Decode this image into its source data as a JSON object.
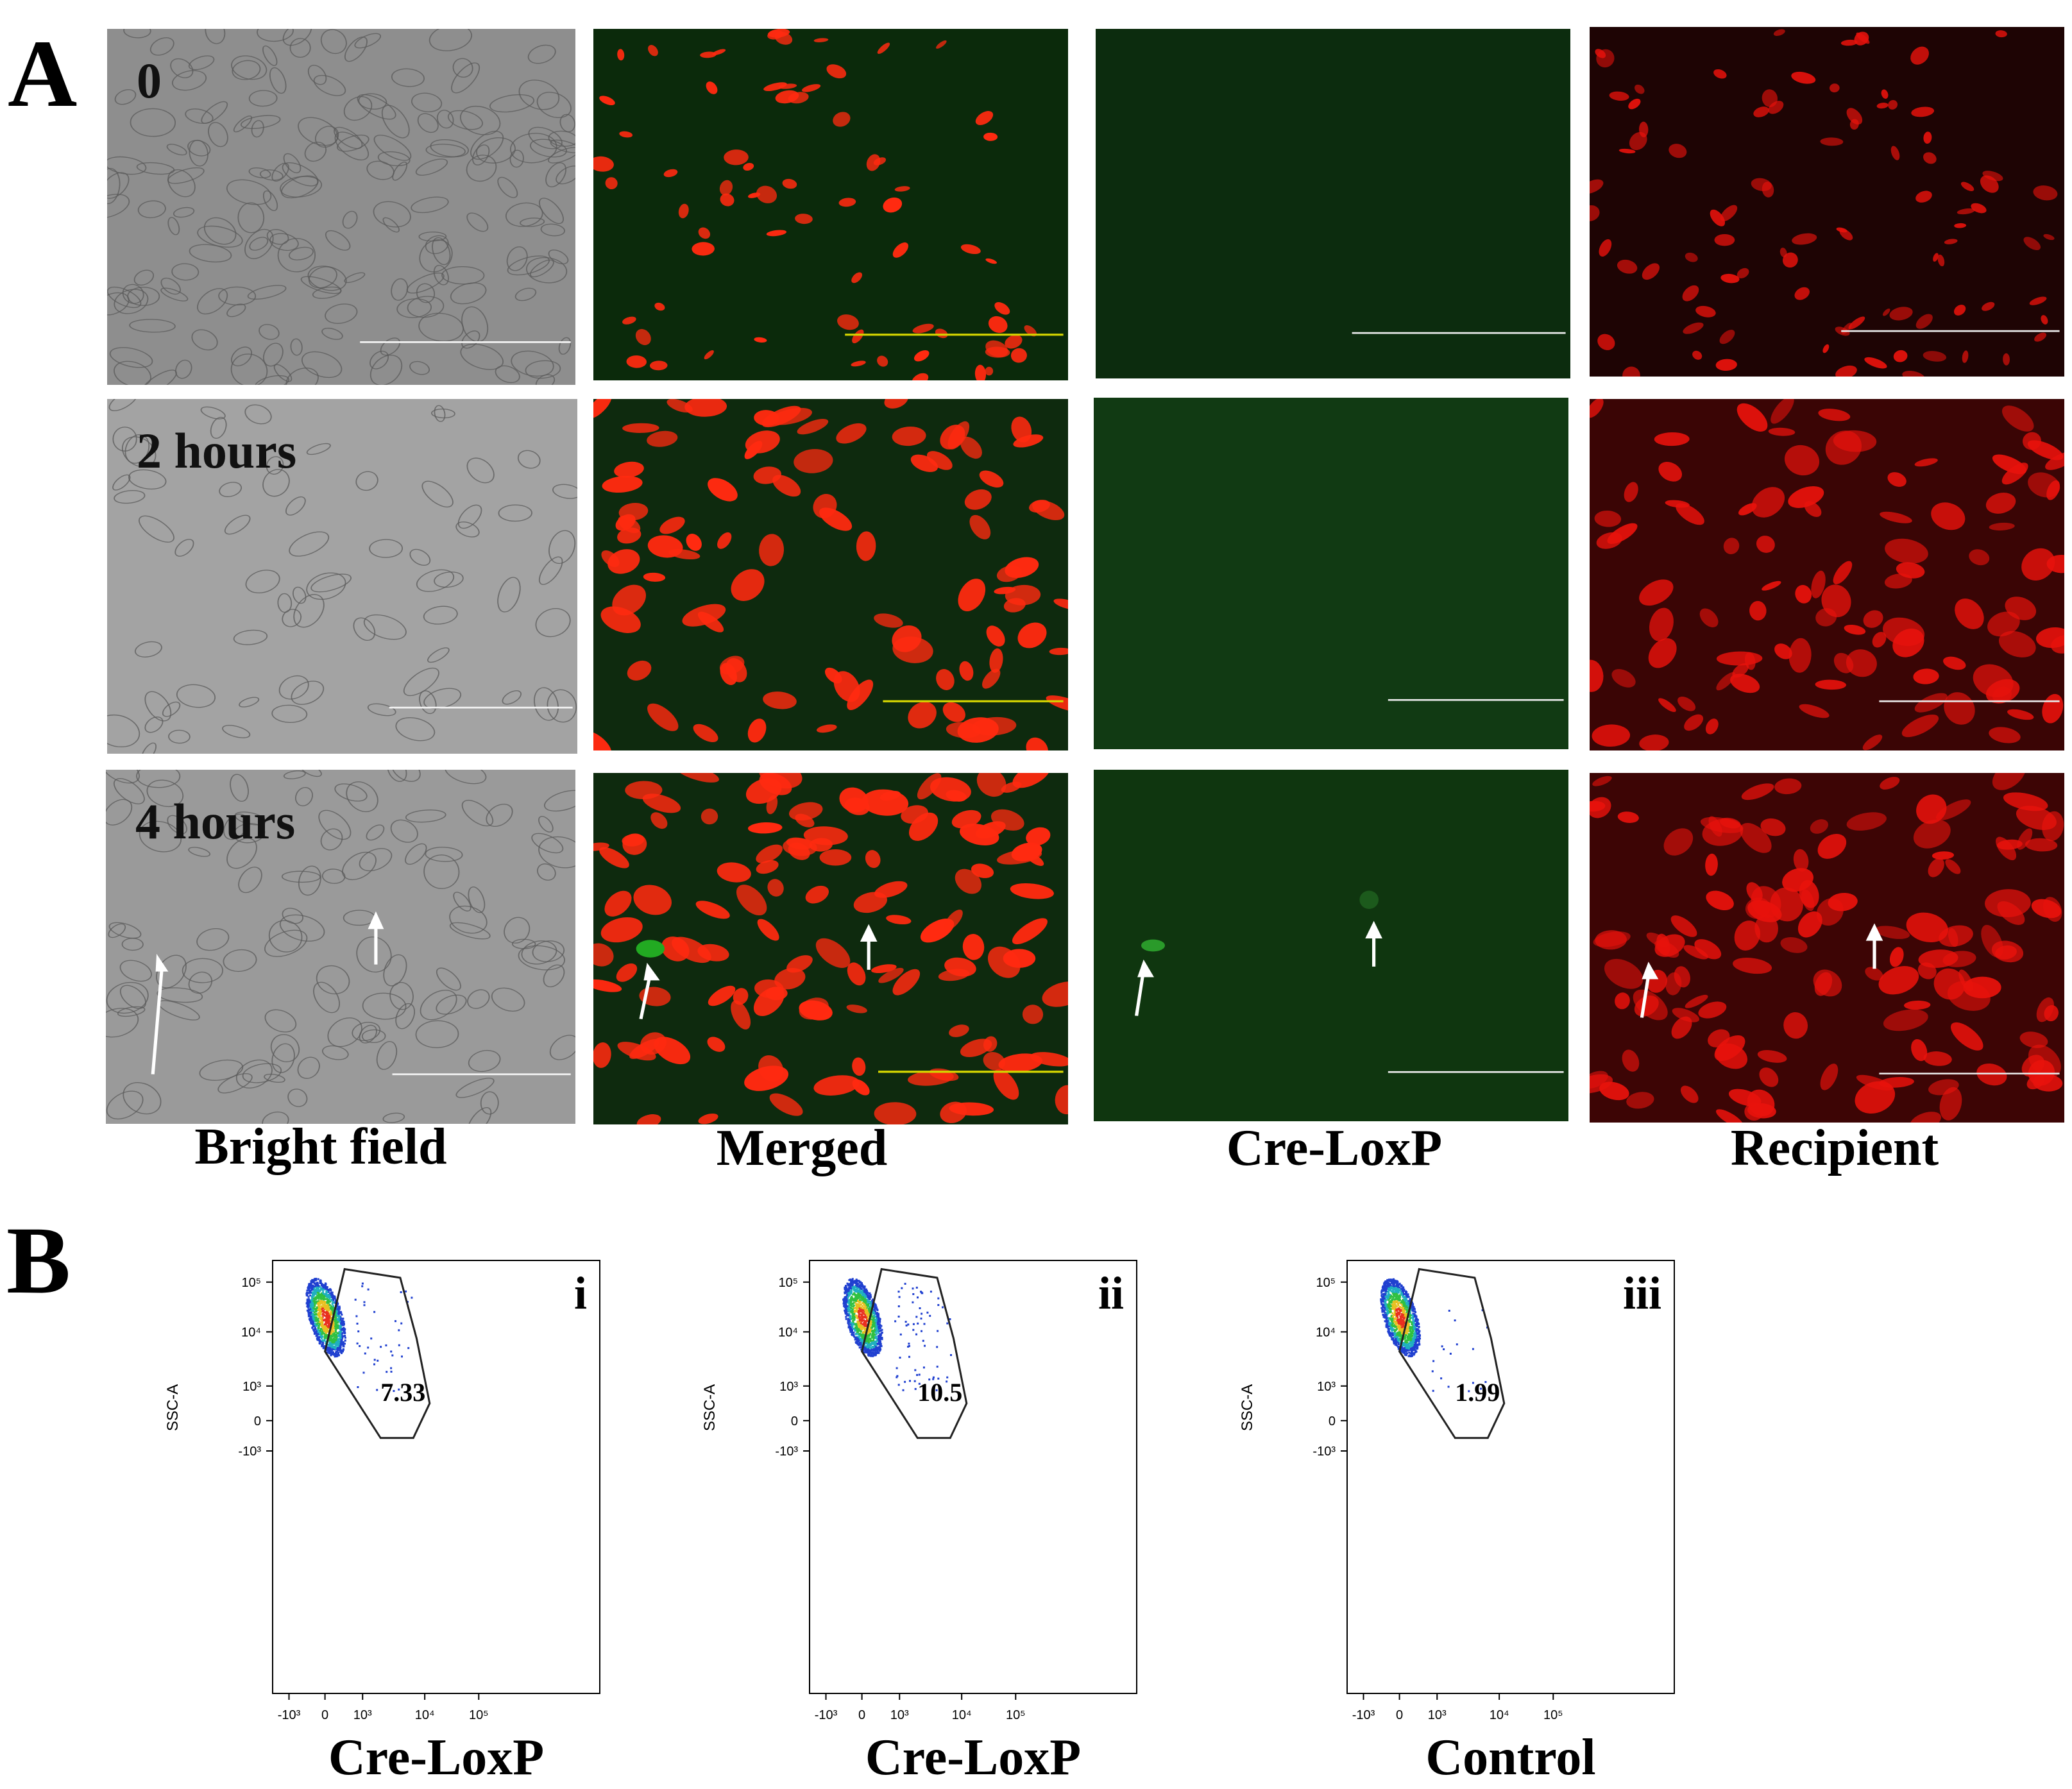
{
  "panel_a": {
    "letter": "A",
    "rows": [
      {
        "time_label": "0"
      },
      {
        "time_label": "2 hours"
      },
      {
        "time_label": "4 hours"
      }
    ],
    "columns": [
      {
        "label": "Bright field"
      },
      {
        "label": "Merged"
      },
      {
        "label": "Cre-LoxP"
      },
      {
        "label": "Recipient"
      }
    ]
  },
  "panel_b": {
    "letter": "B",
    "plots": [
      {
        "roman": "i",
        "gate_value": "7.33",
        "x_title": "Cre-LoxP"
      },
      {
        "roman": "ii",
        "gate_value": "10.5",
        "x_title": "Cre-LoxP"
      },
      {
        "roman": "iii",
        "gate_value": "1.99",
        "x_title": "Control"
      }
    ],
    "y_axis_label": "SSC-A",
    "y_ticks": [
      "10^5",
      "10^4",
      "10^3",
      "0",
      "-10^3"
    ],
    "x_ticks": [
      "-10^3",
      "0",
      "10^3",
      "10^4",
      "10^5"
    ]
  },
  "colors": {
    "red": "#ff2a10",
    "green_bg": "#0b2a0b",
    "gfp": "#22aa22",
    "scale_yellow": "#d4d400",
    "scale_white": "#e8e8e8"
  },
  "chart_data": [
    {
      "type": "scatter",
      "ylabel": "SSC-A",
      "gate_percent": 7.33,
      "roman": "i",
      "xlabel": "Cre-LoxP"
    },
    {
      "type": "scatter",
      "ylabel": "SSC-A",
      "gate_percent": 10.5,
      "roman": "ii",
      "xlabel": "Cre-LoxP"
    },
    {
      "type": "scatter",
      "ylabel": "SSC-A",
      "gate_percent": 1.99,
      "roman": "iii",
      "xlabel": "Control"
    }
  ]
}
